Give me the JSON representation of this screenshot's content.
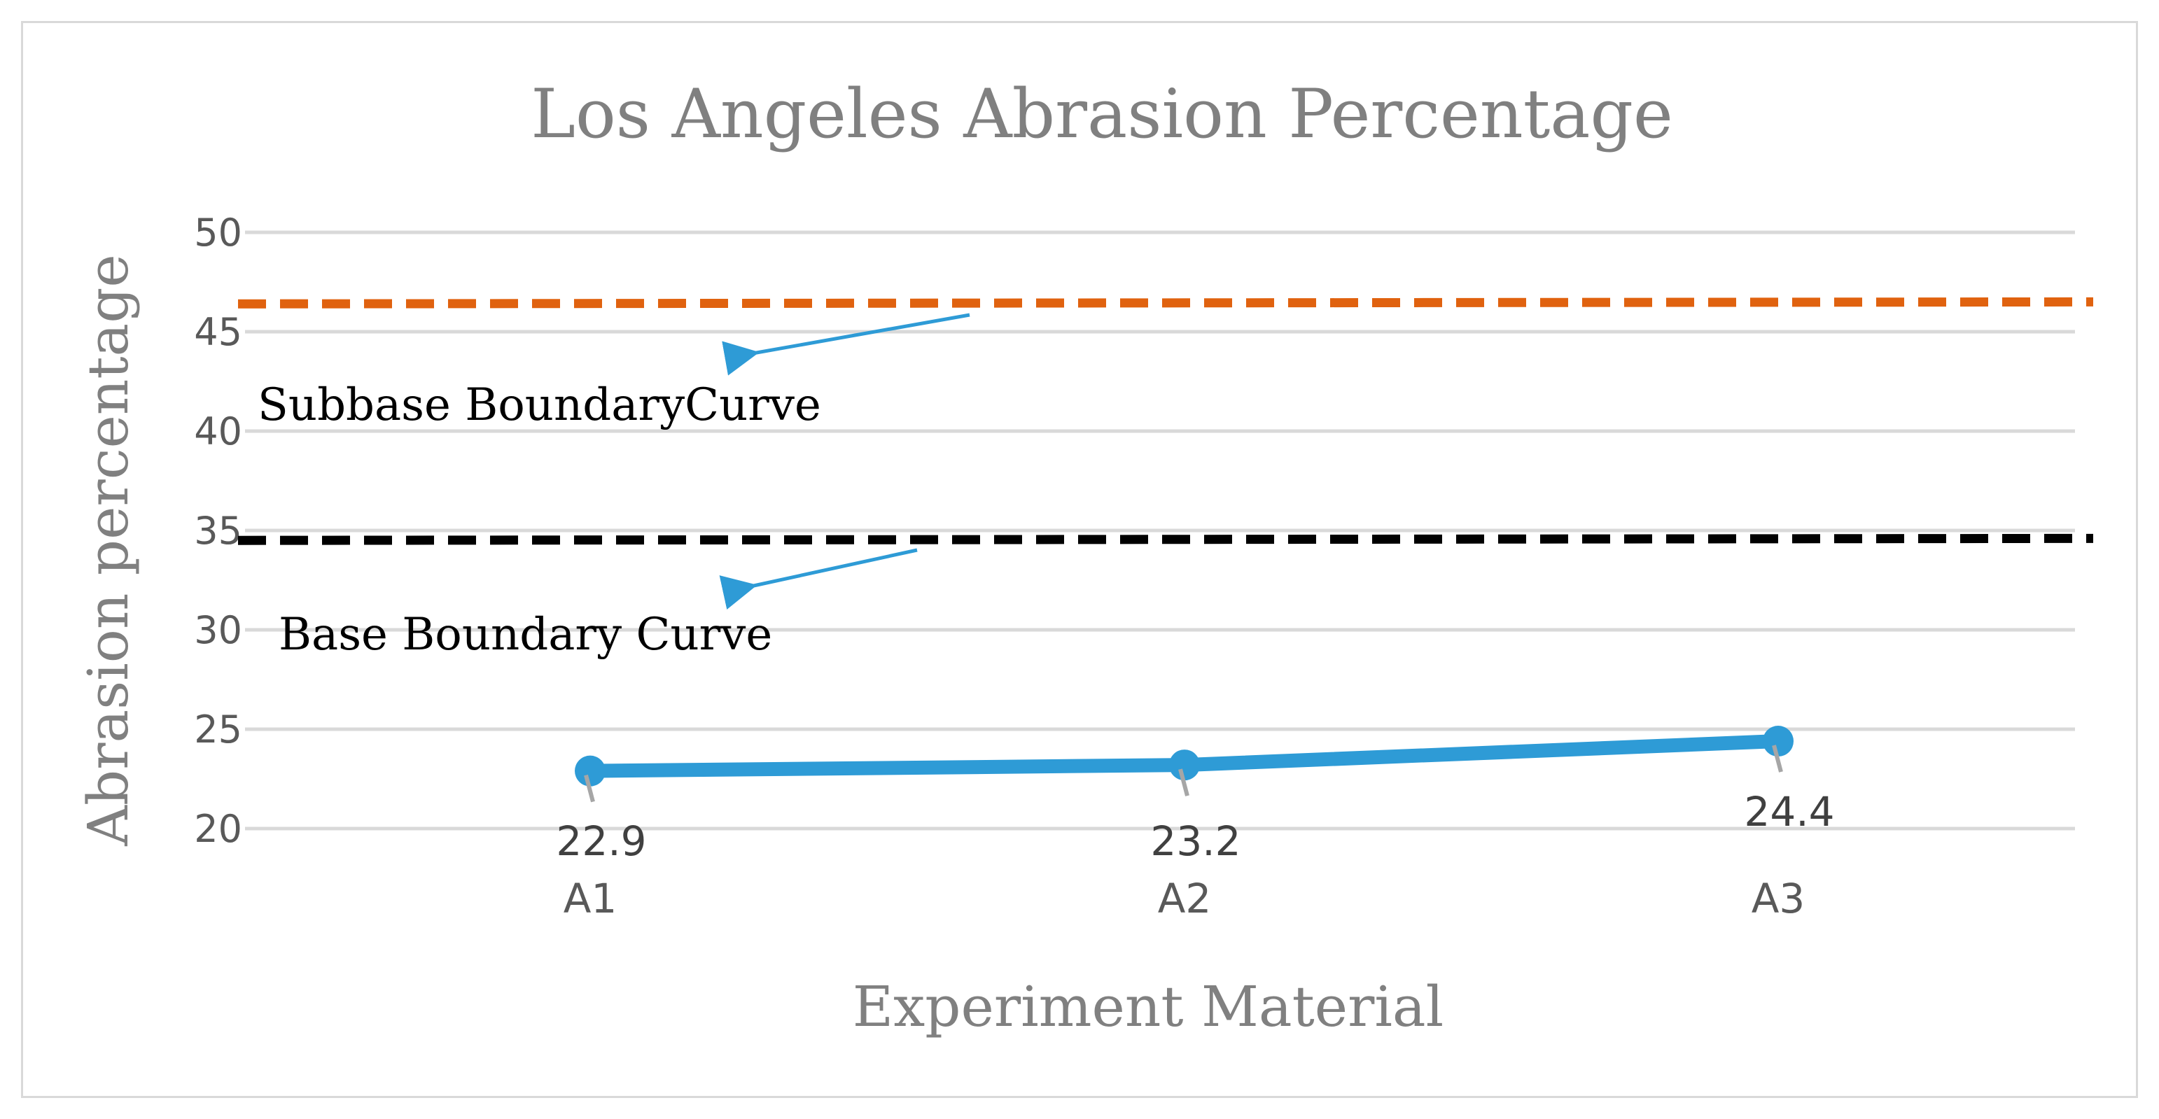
{
  "chart_data": {
    "type": "line",
    "title": "Los Angeles Abrasion Percentage",
    "xlabel": "Experiment Material",
    "ylabel": "Abrasion percentage",
    "categories": [
      "A1",
      "A2",
      "A3"
    ],
    "ylim": [
      20,
      50
    ],
    "yticks": [
      20,
      25,
      30,
      35,
      40,
      45,
      50
    ],
    "grid": true,
    "series": [
      {
        "name": "Abrasion percentage",
        "values": [
          22.9,
          23.2,
          24.4
        ],
        "labels": [
          "22.9",
          "23.2",
          "24.4"
        ],
        "color": "#2e9bd6"
      }
    ],
    "reference_lines": [
      {
        "name": "Subbase Boundary",
        "start": 46.4,
        "end": 46.5,
        "color": "#e0620f"
      },
      {
        "name": "Base Boundary",
        "start": 34.5,
        "end": 34.6,
        "color": "#000000"
      }
    ],
    "annotations": [
      {
        "text": "Subbase BoundaryCurve",
        "target": "Subbase Boundary"
      },
      {
        "text": "Base Boundary Curve",
        "target": "Base Boundary"
      }
    ],
    "annotation_arrow_color": "#2e9bd6"
  }
}
